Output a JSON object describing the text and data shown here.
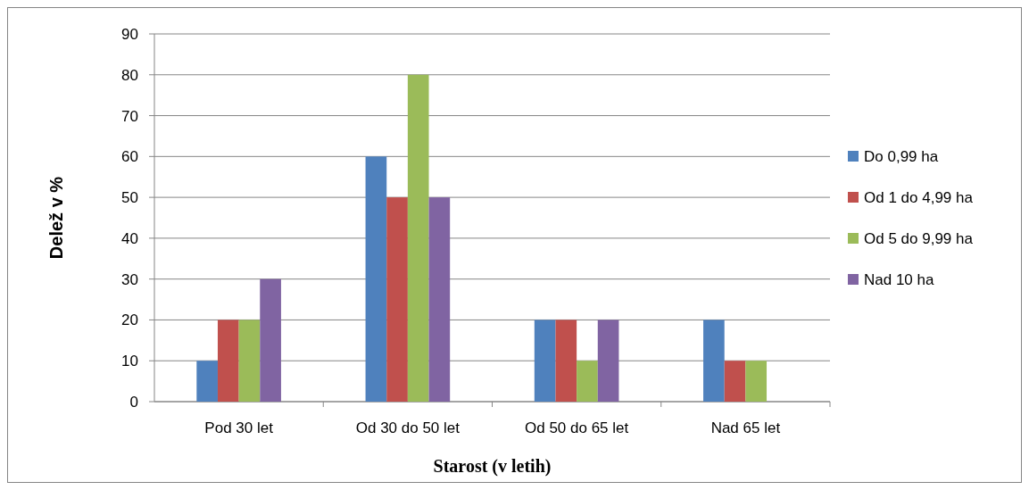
{
  "chart_data": {
    "type": "bar",
    "xlabel": "Starost (v letih)",
    "ylabel": "Delež v %",
    "categories": [
      "Pod 30 let",
      "Od 30 do 50 let",
      "Od 50 do 65 let",
      "Nad 65 let"
    ],
    "series": [
      {
        "name": "Do 0,99 ha",
        "color": "#4f81bd",
        "values": [
          10,
          60,
          20,
          20
        ]
      },
      {
        "name": "Od 1 do 4,99 ha",
        "color": "#c0504d",
        "values": [
          20,
          50,
          20,
          10
        ]
      },
      {
        "name": "Od 5 do 9,99 ha",
        "color": "#9bbb59",
        "values": [
          20,
          80,
          10,
          10
        ]
      },
      {
        "name": "Nad 10 ha",
        "color": "#8064a2",
        "values": [
          30,
          50,
          20,
          0
        ]
      }
    ],
    "ylim": [
      0,
      90
    ],
    "yticks": [
      0,
      10,
      20,
      30,
      40,
      50,
      60,
      70,
      80,
      90
    ],
    "grid": "y",
    "legend": "right"
  }
}
